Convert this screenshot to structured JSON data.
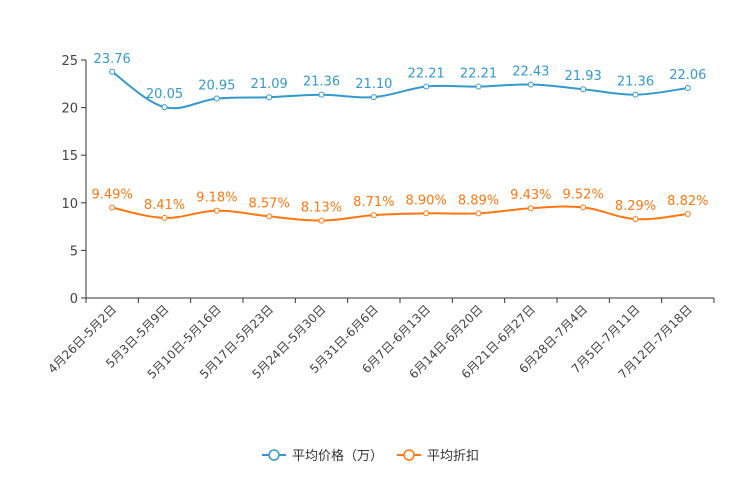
{
  "chart_data": {
    "type": "line",
    "categories": [
      "4月26日-5月2日",
      "5月3日-5月9日",
      "5月10日-5月16日",
      "5月17日-5月23日",
      "5月24日-5月30日",
      "5月31日-6月6日",
      "6月7日-6月13日",
      "6月14日-6月20日",
      "6月21日-6月27日",
      "6月28日-7月4日",
      "7月5日-7月11日",
      "7月12日-7月18日"
    ],
    "series": [
      {
        "name": "平均价格（万）",
        "color": "#3399cc",
        "values": [
          23.76,
          20.05,
          20.95,
          21.09,
          21.36,
          21.1,
          22.21,
          22.21,
          22.43,
          21.93,
          21.36,
          22.06
        ],
        "labels": [
          "23.76",
          "20.05",
          "20.95",
          "21.09",
          "21.36",
          "21.10",
          "22.21",
          "22.21",
          "22.43",
          "21.93",
          "21.36",
          "22.06"
        ]
      },
      {
        "name": "平均折扣",
        "color": "#ff7711",
        "values": [
          9.49,
          8.41,
          9.18,
          8.57,
          8.13,
          8.71,
          8.9,
          8.89,
          9.43,
          9.52,
          8.29,
          8.82
        ],
        "labels": [
          "9.49%",
          "8.41%",
          "9.18%",
          "8.57%",
          "8.13%",
          "8.71%",
          "8.90%",
          "8.89%",
          "9.43%",
          "9.52%",
          "8.29%",
          "8.82%"
        ]
      }
    ],
    "yticks": [
      "0",
      "5",
      "10",
      "15",
      "20",
      "25"
    ],
    "ylim": [
      0,
      25
    ],
    "grid": false,
    "legend_position": "bottom-center",
    "axis_color": "#333333",
    "tick_color": "#444444"
  }
}
